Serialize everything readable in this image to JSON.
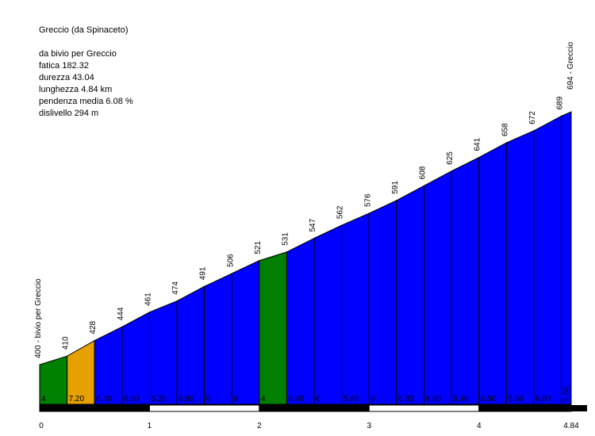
{
  "info": {
    "title": "Greccio (da Spinaceto)",
    "start": "da bivio per Greccio",
    "fatica": "fatica 182.32",
    "durezza": "durezza 43.04",
    "lunghezza": "lunghezza 4.84 km",
    "pendenza": "pendenza media 6.08 %",
    "dislivello": "dislivello 294 m"
  },
  "chart_data": {
    "type": "area",
    "title": "Greccio (da Spinaceto)",
    "xlabel": "",
    "ylabel": "",
    "xlim": [
      0,
      4.84
    ],
    "grid": false,
    "legend": "none",
    "x_ticks": [
      "0",
      "1",
      "2",
      "3",
      "4",
      "4.84"
    ],
    "segments": [
      {
        "x0": 0.0,
        "x1": 0.25,
        "elev_start": 400,
        "elev_end": 410,
        "gradient": "4",
        "elev_label": "400 - bivio per Greccio"
      },
      {
        "x0": 0.25,
        "x1": 0.5,
        "elev_start": 410,
        "elev_end": 428,
        "gradient": "7.20",
        "elev_label": "410"
      },
      {
        "x0": 0.5,
        "x1": 0.75,
        "elev_start": 428,
        "elev_end": 444,
        "gradient": "6.40",
        "elev_label": "428"
      },
      {
        "x0": 0.75,
        "x1": 1.0,
        "elev_start": 444,
        "elev_end": 461,
        "gradient": "6.80",
        "elev_label": "444"
      },
      {
        "x0": 1.0,
        "x1": 1.25,
        "elev_start": 461,
        "elev_end": 474,
        "gradient": "5.20",
        "elev_label": "461"
      },
      {
        "x0": 1.25,
        "x1": 1.5,
        "elev_start": 474,
        "elev_end": 491,
        "gradient": "6.80",
        "elev_label": "474"
      },
      {
        "x0": 1.5,
        "x1": 1.75,
        "elev_start": 491,
        "elev_end": 506,
        "gradient": "6",
        "elev_label": "491"
      },
      {
        "x0": 1.75,
        "x1": 2.0,
        "elev_start": 506,
        "elev_end": 521,
        "gradient": "6",
        "elev_label": "506"
      },
      {
        "x0": 2.0,
        "x1": 2.25,
        "elev_start": 521,
        "elev_end": 531,
        "gradient": "4",
        "elev_label": "521"
      },
      {
        "x0": 2.25,
        "x1": 2.5,
        "elev_start": 531,
        "elev_end": 547,
        "gradient": "6.40",
        "elev_label": "531"
      },
      {
        "x0": 2.5,
        "x1": 2.75,
        "elev_start": 547,
        "elev_end": 562,
        "gradient": "6",
        "elev_label": "547"
      },
      {
        "x0": 2.75,
        "x1": 3.0,
        "elev_start": 562,
        "elev_end": 576,
        "gradient": "5.60",
        "elev_label": "562"
      },
      {
        "x0": 3.0,
        "x1": 3.25,
        "elev_start": 576,
        "elev_end": 591,
        "gradient": "6",
        "elev_label": "576"
      },
      {
        "x0": 3.25,
        "x1": 3.5,
        "elev_start": 591,
        "elev_end": 608,
        "gradient": "6.80",
        "elev_label": "591"
      },
      {
        "x0": 3.5,
        "x1": 3.75,
        "elev_start": 608,
        "elev_end": 625,
        "gradient": "6.80",
        "elev_label": "608"
      },
      {
        "x0": 3.75,
        "x1": 4.0,
        "elev_start": 625,
        "elev_end": 641,
        "gradient": "6.40",
        "elev_label": "625"
      },
      {
        "x0": 4.0,
        "x1": 4.25,
        "elev_start": 641,
        "elev_end": 658,
        "gradient": "6.80",
        "elev_label": "641"
      },
      {
        "x0": 4.25,
        "x1": 4.5,
        "elev_start": 658,
        "elev_end": 672,
        "gradient": "5.60",
        "elev_label": "658"
      },
      {
        "x0": 4.5,
        "x1": 4.75,
        "elev_start": 672,
        "elev_end": 689,
        "gradient": "6.80",
        "elev_label": "672"
      },
      {
        "x0": 4.75,
        "x1": 4.84,
        "elev_start": 689,
        "elev_end": 694,
        "gradient": "5.56",
        "elev_label": "689"
      }
    ],
    "end_label": "694 - Greccio",
    "colors": {
      "gentle": "#008000",
      "moderate": "#e6a000",
      "steep": "#0000ff"
    },
    "segment_color_keys": [
      "gentle",
      "moderate",
      "steep",
      "steep",
      "steep",
      "steep",
      "steep",
      "steep",
      "gentle",
      "steep",
      "steep",
      "steep",
      "steep",
      "steep",
      "steep",
      "steep",
      "steep",
      "steep",
      "steep",
      "steep"
    ]
  }
}
